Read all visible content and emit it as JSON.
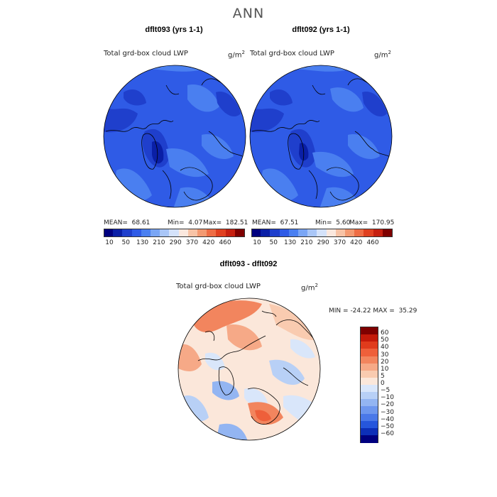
{
  "title": "ANN",
  "panels": [
    {
      "case": "dflt093 (yrs 1-1)",
      "field": "Total grd-box cloud LWP",
      "units": "g/m",
      "units_exp": "2",
      "mean_label": "MEAN=",
      "mean": "68.61",
      "min_label": "Min=",
      "min": "4.07",
      "max_label": "Max=",
      "max": "182.51"
    },
    {
      "case": "dflt092 (yrs 1-1)",
      "field": "Total grd-box cloud LWP",
      "units": "g/m",
      "units_exp": "2",
      "mean_label": "MEAN=",
      "mean": "67.51",
      "min_label": "Min=",
      "min": "5.60",
      "max_label": "Max=",
      "max": "170.95"
    }
  ],
  "abs_colorbar": {
    "colors": [
      "#00007f",
      "#0a1fa6",
      "#1f3fcc",
      "#2f5be6",
      "#4a7ff0",
      "#7aa6f5",
      "#a9c6f7",
      "#d4e2fa",
      "#fbe8de",
      "#f7c3a6",
      "#f39a72",
      "#ee6d45",
      "#e04020",
      "#c62010",
      "#7f0000"
    ],
    "labels": [
      "10",
      "50",
      "130",
      "210",
      "290",
      "370",
      "420",
      "460"
    ]
  },
  "diff": {
    "title": "dflt093 - dflt092",
    "field": "Total grd-box cloud LWP",
    "units": "g/m",
    "units_exp": "2",
    "min_label": "MIN =",
    "min": "-24.22",
    "max_label": "MAX =",
    "max": "35.29",
    "colorbar": {
      "colors": [
        "#7f0000",
        "#c41a0a",
        "#e03b1c",
        "#ee5f3a",
        "#f2855e",
        "#f6a987",
        "#f9cbb0",
        "#fbe7da",
        "#d9e6fa",
        "#b8d0f6",
        "#93b5f2",
        "#6e97ee",
        "#4a78e8",
        "#2656dc",
        "#0d2fb8",
        "#00007f"
      ],
      "labels": [
        "60",
        "50",
        "40",
        "30",
        "20",
        "10",
        "5",
        "0",
        "−5",
        "−10",
        "−20",
        "−30",
        "−40",
        "−50",
        "−60"
      ]
    }
  }
}
